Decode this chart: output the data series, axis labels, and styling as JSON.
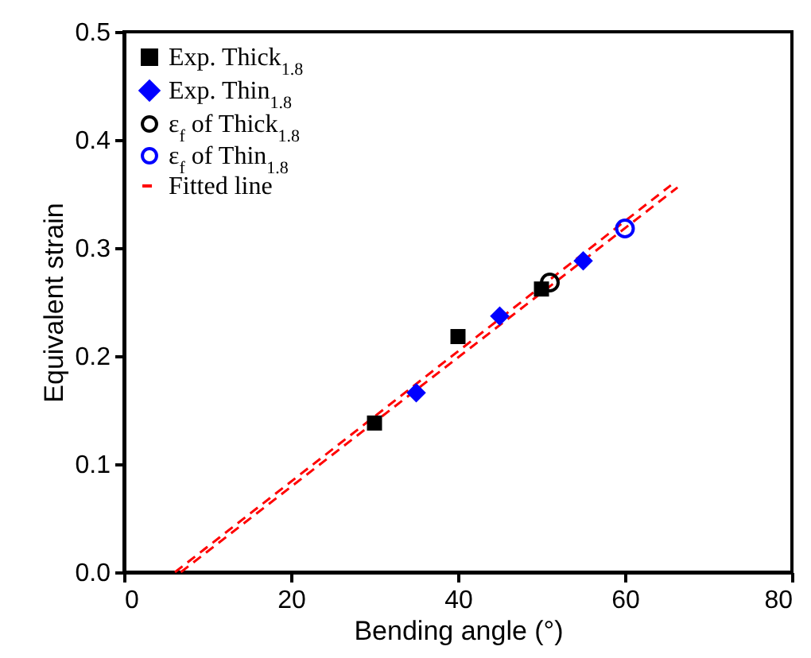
{
  "chart_data": {
    "type": "scatter",
    "xlabel": "Bending angle (°)",
    "ylabel": "Equivalent strain",
    "xlim": [
      0,
      80
    ],
    "xticks": [
      0,
      20,
      40,
      60,
      80
    ],
    "ylim": [
      0,
      0.5
    ],
    "yticks": [
      {
        "value": 0,
        "label": "0.0"
      },
      0.1,
      0.2,
      0.3,
      0.4,
      0.5
    ],
    "grid": false,
    "legend": "top left",
    "series": [
      {
        "name": "Exp. Thick$_{1.8}$",
        "color": "#000000",
        "marker": "square",
        "x": [
          30,
          40,
          50
        ],
        "values": [
          0.138,
          0.218,
          0.262
        ]
      },
      {
        "name": "Exp. Thin$_{1.8}$",
        "color": "#0000ff",
        "marker": "diamond",
        "x": [
          35,
          45,
          55
        ],
        "values": [
          0.166,
          0.237,
          0.288
        ]
      },
      {
        "name": "ε$_{f}$ of Thick$_{1.8}$",
        "color": "#000000",
        "marker": "circle",
        "x": [
          51
        ],
        "values": [
          0.268
        ]
      },
      {
        "name": "ε$_{f}$ of Thin$_{1.8}$",
        "color": "#0000ff",
        "marker": "circle",
        "x": [
          60
        ],
        "values": [
          0.318
        ]
      },
      {
        "name": "Fitted line",
        "type": "line",
        "color": "#ff0000",
        "line_style": "dashed",
        "marker": "none",
        "x": [
          6.1,
          65.5
        ],
        "values": [
          0,
          0.358
        ]
      },
      {
        "type": "line",
        "color": "#ff0000",
        "line_style": "dashed",
        "marker": "none",
        "x": [
          6.8,
          66.3
        ],
        "values": [
          0,
          0.356
        ]
      }
    ]
  }
}
